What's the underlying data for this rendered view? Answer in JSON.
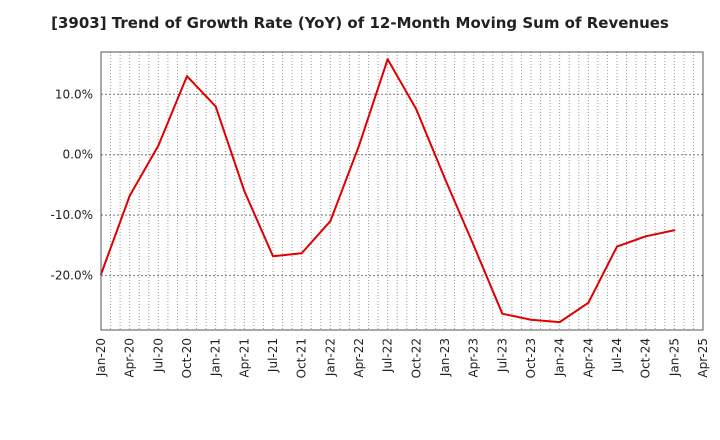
{
  "chart_data": {
    "type": "line",
    "title": "[3903]  Trend of Growth Rate (YoY) of 12-Month Moving Sum of Revenues",
    "xlabel": "",
    "ylabel": "",
    "y_unit_suffix": "%",
    "ylim": [
      -29.0,
      17.0
    ],
    "y_ticks": [
      10.0,
      0.0,
      -10.0,
      -20.0
    ],
    "y_tick_labels": [
      "10.0%",
      "0.0%",
      "-10.0%",
      "-20.0%"
    ],
    "x_tick_labels": [
      "Jan-20",
      "Apr-20",
      "Jul-20",
      "Oct-20",
      "Jan-21",
      "Apr-21",
      "Jul-21",
      "Oct-21",
      "Jan-22",
      "Apr-22",
      "Jul-22",
      "Oct-22",
      "Jan-23",
      "Apr-23",
      "Jul-23",
      "Oct-23",
      "Jan-24",
      "Apr-24",
      "Jul-24",
      "Oct-24",
      "Jan-25",
      "Apr-25"
    ],
    "grid": true,
    "line_color": "#e00000",
    "series": [
      {
        "x": [
          "Jan-20",
          "Apr-20",
          "Jul-20",
          "Oct-20",
          "Jan-21",
          "Apr-21",
          "Jul-21",
          "Oct-21",
          "Jan-22",
          "Apr-22",
          "Jul-22",
          "Oct-22",
          "Jan-23",
          "Apr-23",
          "Jul-23",
          "Oct-23",
          "Jan-24",
          "Apr-24",
          "Jul-24",
          "Oct-24",
          "Jan-25"
        ],
        "values": [
          -19.8,
          -6.8,
          1.5,
          13.0,
          8.0,
          -6.0,
          -16.8,
          -16.3,
          -11.0,
          1.5,
          15.8,
          7.5,
          -4.0,
          -15.0,
          -26.3,
          -27.3,
          -27.7,
          -24.5,
          -15.2,
          -13.5,
          -12.5
        ]
      }
    ]
  }
}
